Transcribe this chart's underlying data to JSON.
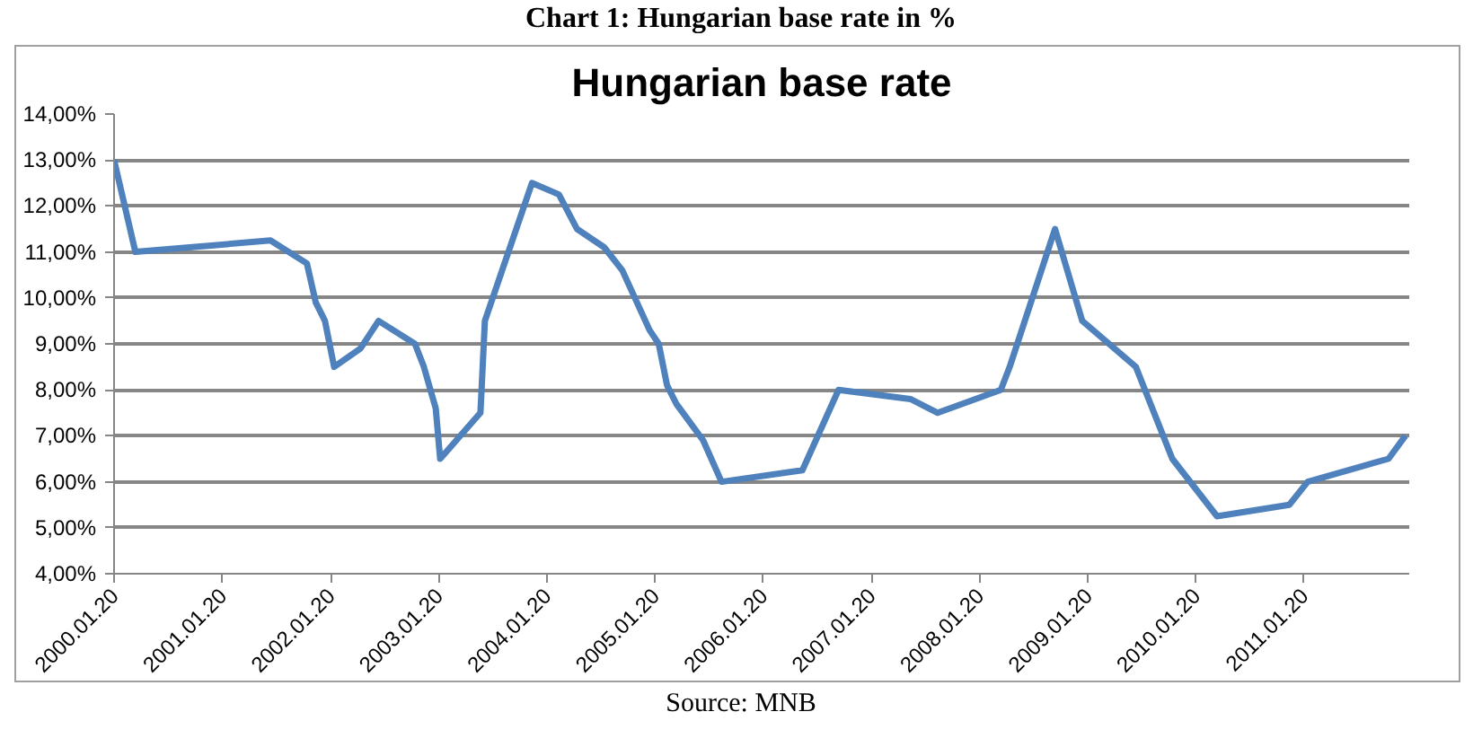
{
  "chart_data": {
    "type": "line",
    "title": "Chart 1: Hungarian base rate in %",
    "subtitle": "Hungarian base rate",
    "annotations": [
      "Source: MNB"
    ],
    "x": [
      "2000-01-20",
      "2000-04",
      "2001-07",
      "2001-11",
      "2001-12",
      "2002-01",
      "2002-02",
      "2002-05",
      "2002-07",
      "2002-11",
      "2002-12",
      "2003-01-10",
      "2003-01-25",
      "2003-06-10",
      "2003-06-25",
      "2003-12",
      "2004-03",
      "2004-05",
      "2004-08",
      "2004-10",
      "2005-01",
      "2005-02",
      "2005-03",
      "2005-04",
      "2005-07",
      "2005-09",
      "2006-06",
      "2006-10",
      "2007-06",
      "2007-09",
      "2008-04",
      "2008-05",
      "2008-10",
      "2009-01",
      "2009-07",
      "2009-11",
      "2010-04",
      "2010-12",
      "2011-02",
      "2011-11",
      "2011-12-28"
    ],
    "series": [
      {
        "color": "#4f81bd",
        "values": [
          13.0,
          11.0,
          11.25,
          10.75,
          9.9,
          9.5,
          8.5,
          8.9,
          9.5,
          9.0,
          8.5,
          7.6,
          6.5,
          7.5,
          9.5,
          12.5,
          12.25,
          11.5,
          11.1,
          10.6,
          9.3,
          9.0,
          8.1,
          7.7,
          6.9,
          6.0,
          6.25,
          8.0,
          7.8,
          7.5,
          8.0,
          8.5,
          11.5,
          9.5,
          8.5,
          6.5,
          5.25,
          5.5,
          6.0,
          6.5,
          7.0
        ]
      }
    ],
    "xlim": [
      "2000-01-20",
      "2012-01-10"
    ],
    "xticks": [
      {
        "value": "2000-01-20",
        "label": "2000.01.20"
      },
      {
        "value": "2001-01-20",
        "label": "2001.01.20"
      },
      {
        "value": "2002-01-20",
        "label": "2002.01.20"
      },
      {
        "value": "2003-01-20",
        "label": "2003.01.20"
      },
      {
        "value": "2004-01-20",
        "label": "2004.01.20"
      },
      {
        "value": "2005-01-20",
        "label": "2005.01.20"
      },
      {
        "value": "2006-01-20",
        "label": "2006.01.20"
      },
      {
        "value": "2007-01-20",
        "label": "2007.01.20"
      },
      {
        "value": "2008-01-20",
        "label": "2008.01.20"
      },
      {
        "value": "2009-01-20",
        "label": "2009.01.20"
      },
      {
        "value": "2010-01-20",
        "label": "2010.01.20"
      },
      {
        "value": "2011-01-20",
        "label": "2011.01.20"
      }
    ],
    "ylim": [
      4,
      14
    ],
    "yticks": [
      {
        "value": 4,
        "label": "4,00%"
      },
      {
        "value": 5,
        "label": "5,00%"
      },
      {
        "value": 6,
        "label": "6,00%"
      },
      {
        "value": 7,
        "label": "7,00%"
      },
      {
        "value": 8,
        "label": "8,00%"
      },
      {
        "value": 9,
        "label": "9,00%"
      },
      {
        "value": 10,
        "label": "10,00%"
      },
      {
        "value": 11,
        "label": "11,00%"
      },
      {
        "value": 12,
        "label": "12,00%"
      },
      {
        "value": 13,
        "label": "13,00%"
      },
      {
        "value": 14,
        "label": "14,00%"
      }
    ],
    "grid": "y",
    "marker": "none",
    "line_style": "solid"
  }
}
